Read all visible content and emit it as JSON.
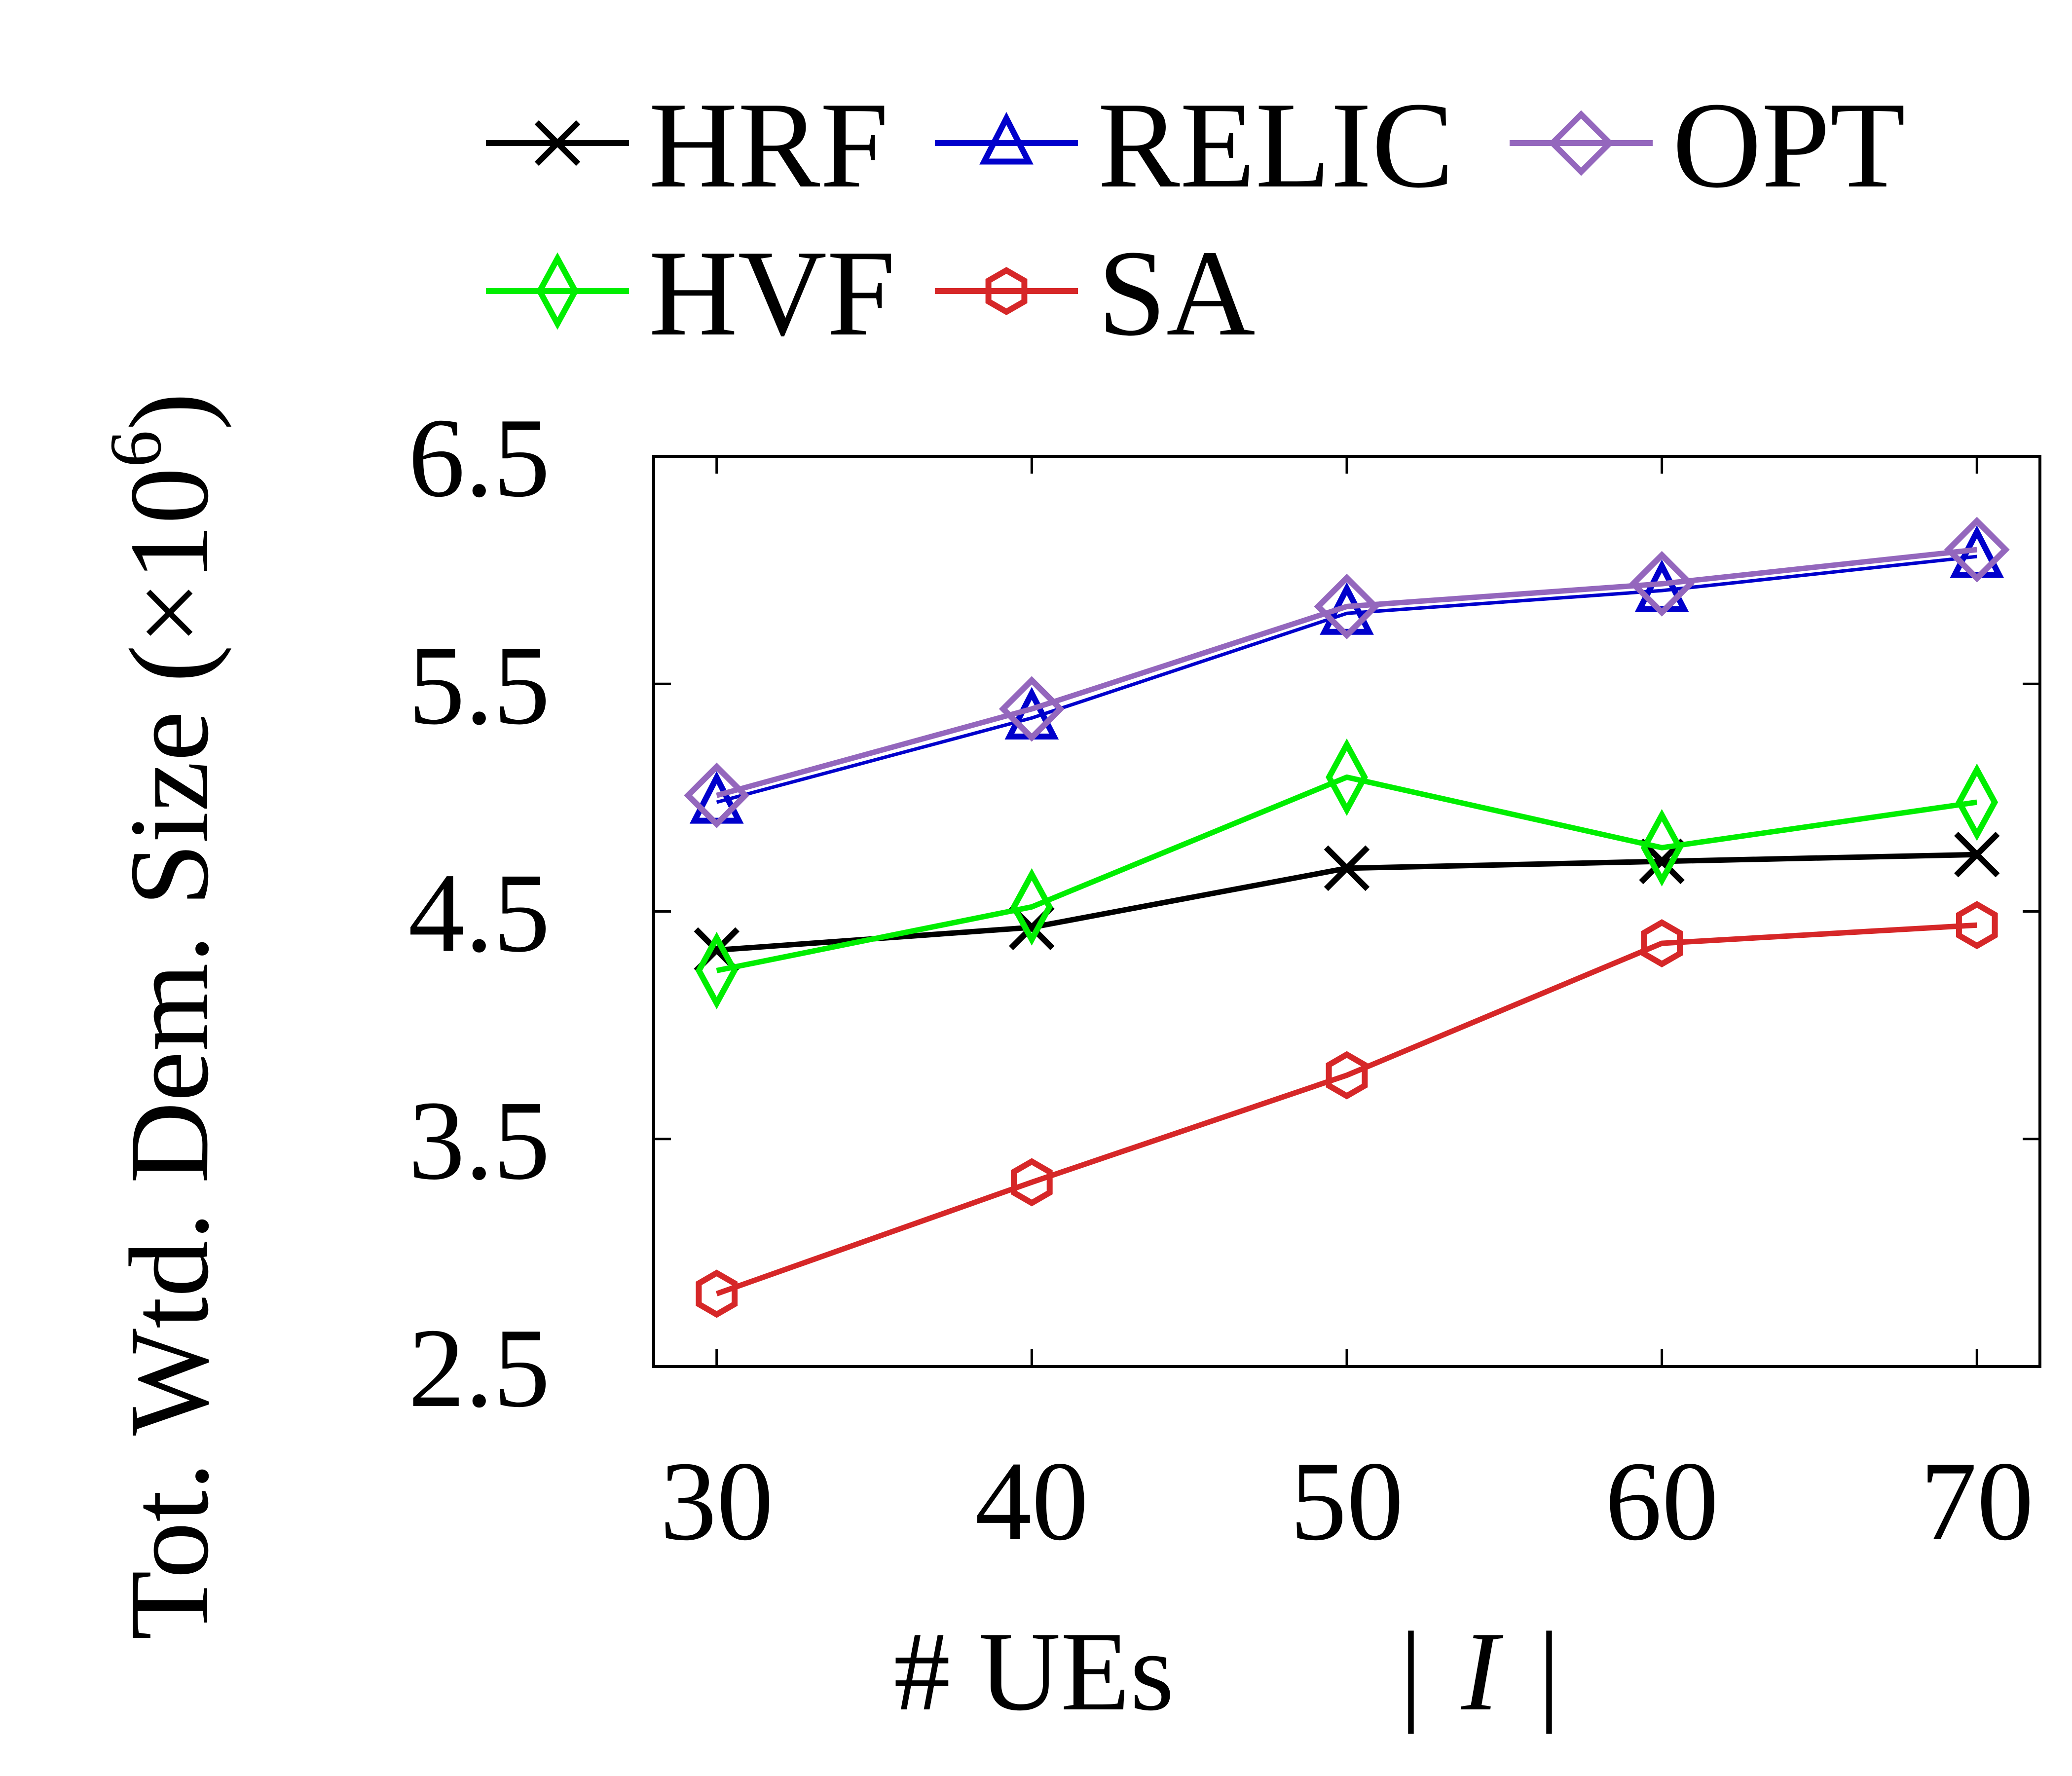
{
  "chart_data": {
    "type": "line",
    "xlabel": "# UEs  | I |",
    "xlabel_parts": {
      "prefix": "# UEs",
      "open": "|",
      "symbol": "I",
      "close": "|"
    },
    "ylabel": "Tot. Wtd. Dem. Size (×10⁶)",
    "ylabel_parts": {
      "text": "Tot. Wtd. Dem. Size (×10",
      "exponent": "6",
      "close": ")"
    },
    "x": [
      30,
      40,
      50,
      60,
      70
    ],
    "x_tick_labels": [
      "30",
      "40",
      "50",
      "60",
      "70"
    ],
    "y_ticks": [
      2.5,
      3.5,
      4.5,
      5.5,
      6.5
    ],
    "y_tick_labels": [
      "2.5",
      "3.5",
      "4.5",
      "5.5",
      "6.5"
    ],
    "xlim": [
      28,
      72
    ],
    "ylim": [
      2.5,
      6.5
    ],
    "grid": false,
    "legend_position": "top",
    "series": [
      {
        "name": "HRF",
        "color": "#000000",
        "marker": "x",
        "values": [
          4.33,
          4.43,
          4.69,
          4.72,
          4.75
        ]
      },
      {
        "name": "RELIC",
        "color": "#0000cc",
        "marker": "triangle",
        "values": [
          4.98,
          5.35,
          5.81,
          5.91,
          6.06
        ]
      },
      {
        "name": "OPT",
        "color": "#9467bd",
        "marker": "diamond",
        "values": [
          5.01,
          5.39,
          5.84,
          5.94,
          6.09
        ]
      },
      {
        "name": "HVF",
        "color": "#00ee00",
        "marker": "thin-diamond",
        "values": [
          4.24,
          4.52,
          5.09,
          4.78,
          4.98
        ]
      },
      {
        "name": "SA",
        "color": "#d62728",
        "marker": "hexagon",
        "values": [
          2.82,
          3.31,
          3.78,
          4.36,
          4.44
        ]
      }
    ]
  }
}
